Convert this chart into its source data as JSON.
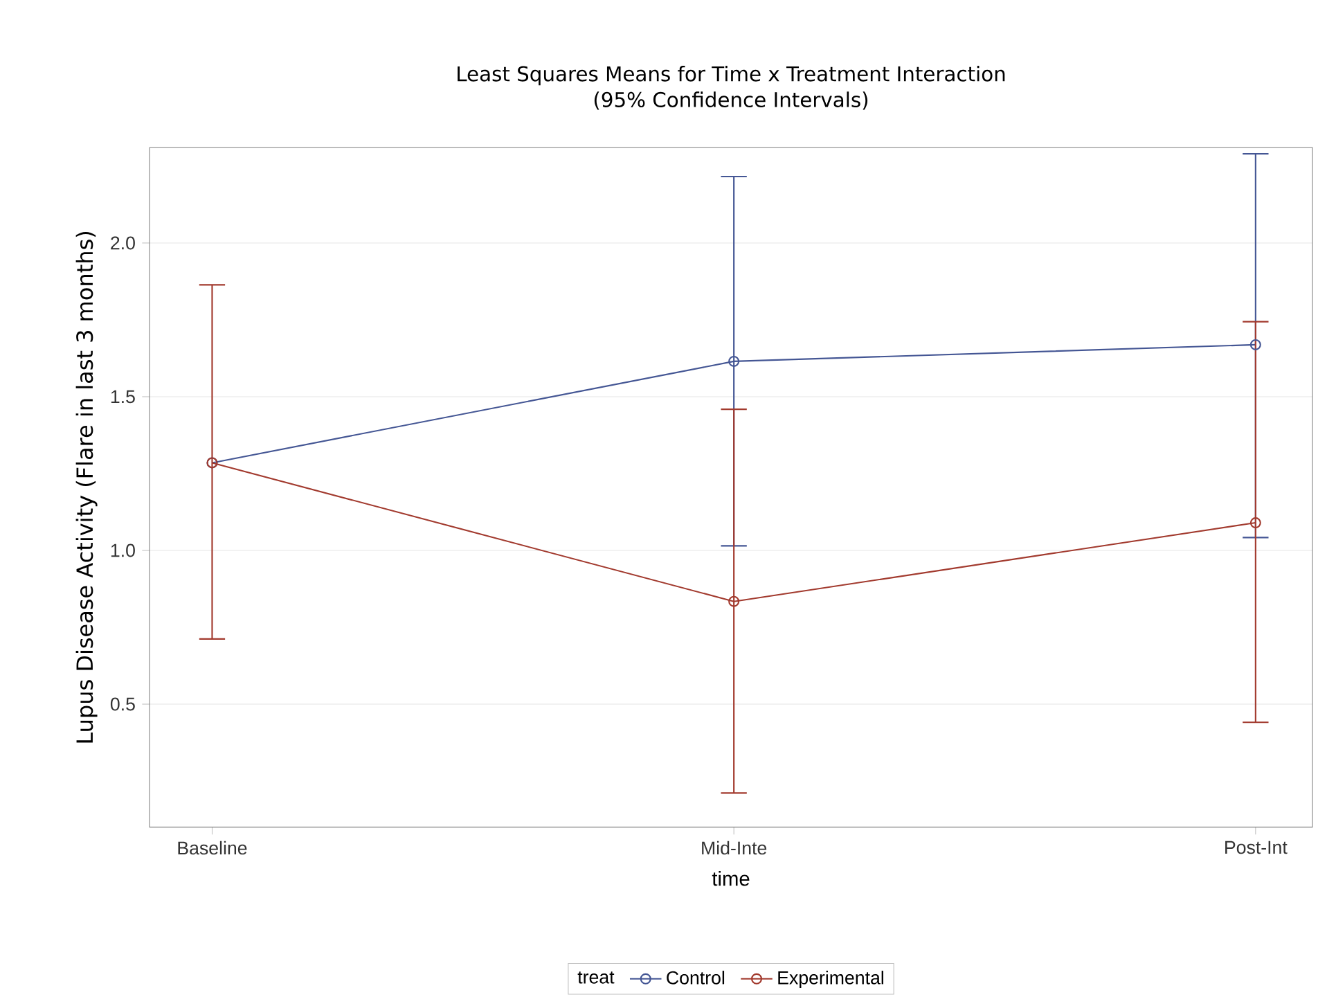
{
  "chart_data": {
    "type": "line",
    "title": "Least Squares Means for Time x Treatment Interaction",
    "subtitle": "(95% Confidence Intervals)",
    "xlabel": "time",
    "ylabel": "Lupus Disease Activity (Flare in last 3 months)",
    "legend_title": "treat",
    "categories": [
      "Baseline",
      "Mid-Inte",
      "Post-Int"
    ],
    "series": [
      {
        "name": "Control",
        "color": "#445694",
        "values": [
          1.285,
          1.615,
          1.669
        ],
        "errors": [
          null,
          [
            1.015,
            2.216
          ],
          [
            1.042,
            2.29
          ]
        ]
      },
      {
        "name": "Experimental",
        "color": "#a23a2e",
        "values": [
          1.285,
          0.834,
          1.09
        ],
        "errors": [
          [
            0.712,
            1.864
          ],
          [
            0.211,
            1.459
          ],
          [
            0.441,
            1.744
          ]
        ]
      }
    ],
    "ylim": [
      0.1,
      2.31
    ],
    "yticks": [
      0.5,
      {
        "value": 1,
        "label": "1.0"
      },
      1.5,
      {
        "value": 2,
        "label": "2.0"
      }
    ],
    "grid": "y",
    "legend": "bottom",
    "marker": "circle",
    "line_style": "solid"
  }
}
